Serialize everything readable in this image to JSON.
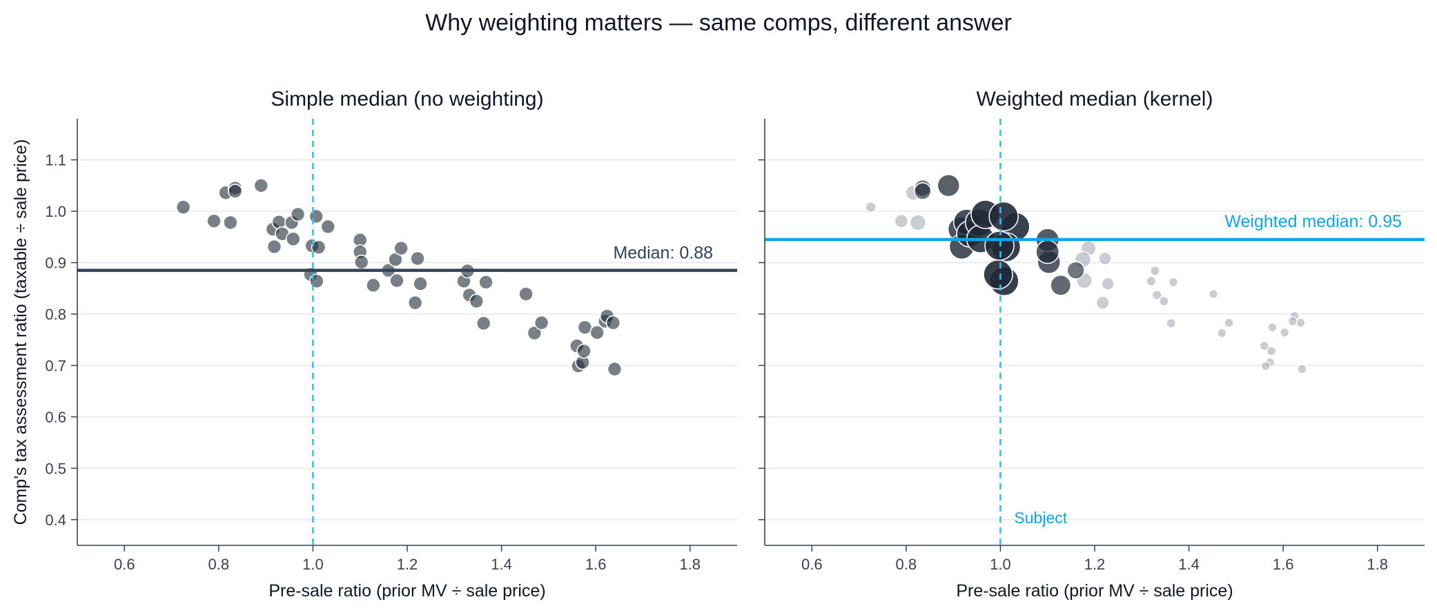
{
  "figure": {
    "title": "Why weighting matters — same comps, different answer",
    "ylabel": "Comp's tax assessment ratio  (taxable ÷ sale price)",
    "colors": {
      "point": "#1f2937",
      "point_light": "#9ca3af",
      "median_line": "#334155",
      "weighted_line": "#0ea5e9",
      "subject_line": "#38bdf8",
      "grid": "#e5e7eb",
      "axis": "#374151",
      "text": "#0f172a"
    }
  },
  "chart_data": [
    {
      "type": "scatter",
      "title": "Simple median (no weighting)",
      "xlabel": "Pre-sale ratio  (prior MV ÷ sale price)",
      "ylabel": "Comp's tax assessment ratio  (taxable ÷ sale price)",
      "xlim": [
        0.5,
        1.9
      ],
      "ylim": [
        0.35,
        1.18
      ],
      "xticks": [
        0.6,
        0.8,
        1.0,
        1.2,
        1.4,
        1.6,
        1.8
      ],
      "yticks": [
        0.4,
        0.5,
        0.6,
        0.7,
        0.8,
        0.9,
        1.0,
        1.1
      ],
      "grid": "horizontal",
      "reference_x": 1.0,
      "median": {
        "value": 0.885,
        "label": "Median: 0.88"
      },
      "points": [
        {
          "x": 0.725,
          "y": 1.008
        },
        {
          "x": 0.79,
          "y": 0.981
        },
        {
          "x": 0.815,
          "y": 1.036
        },
        {
          "x": 0.825,
          "y": 0.978
        },
        {
          "x": 0.835,
          "y": 1.045
        },
        {
          "x": 0.835,
          "y": 1.039
        },
        {
          "x": 0.89,
          "y": 1.05
        },
        {
          "x": 0.915,
          "y": 0.965
        },
        {
          "x": 0.918,
          "y": 0.931
        },
        {
          "x": 0.928,
          "y": 0.979
        },
        {
          "x": 0.935,
          "y": 0.956
        },
        {
          "x": 0.955,
          "y": 0.978
        },
        {
          "x": 0.958,
          "y": 0.946
        },
        {
          "x": 0.968,
          "y": 0.994
        },
        {
          "x": 0.995,
          "y": 0.877
        },
        {
          "x": 0.998,
          "y": 0.933
        },
        {
          "x": 1.007,
          "y": 0.99
        },
        {
          "x": 1.008,
          "y": 0.864
        },
        {
          "x": 1.012,
          "y": 0.93
        },
        {
          "x": 1.032,
          "y": 0.97
        },
        {
          "x": 1.1,
          "y": 0.944
        },
        {
          "x": 1.1,
          "y": 0.921
        },
        {
          "x": 1.103,
          "y": 0.901
        },
        {
          "x": 1.128,
          "y": 0.856
        },
        {
          "x": 1.16,
          "y": 0.885
        },
        {
          "x": 1.175,
          "y": 0.906
        },
        {
          "x": 1.178,
          "y": 0.865
        },
        {
          "x": 1.187,
          "y": 0.928
        },
        {
          "x": 1.217,
          "y": 0.822
        },
        {
          "x": 1.222,
          "y": 0.908
        },
        {
          "x": 1.228,
          "y": 0.859
        },
        {
          "x": 1.32,
          "y": 0.864
        },
        {
          "x": 1.328,
          "y": 0.884
        },
        {
          "x": 1.332,
          "y": 0.837
        },
        {
          "x": 1.347,
          "y": 0.825
        },
        {
          "x": 1.362,
          "y": 0.782
        },
        {
          "x": 1.367,
          "y": 0.862
        },
        {
          "x": 1.452,
          "y": 0.839
        },
        {
          "x": 1.47,
          "y": 0.763
        },
        {
          "x": 1.485,
          "y": 0.783
        },
        {
          "x": 1.56,
          "y": 0.738
        },
        {
          "x": 1.563,
          "y": 0.699
        },
        {
          "x": 1.572,
          "y": 0.706
        },
        {
          "x": 1.575,
          "y": 0.728
        },
        {
          "x": 1.577,
          "y": 0.774
        },
        {
          "x": 1.603,
          "y": 0.764
        },
        {
          "x": 1.62,
          "y": 0.786
        },
        {
          "x": 1.624,
          "y": 0.796
        },
        {
          "x": 1.637,
          "y": 0.783
        },
        {
          "x": 1.64,
          "y": 0.693
        }
      ]
    },
    {
      "type": "scatter",
      "title": "Weighted median (kernel)",
      "xlabel": "Pre-sale ratio  (prior MV ÷ sale price)",
      "xlim": [
        0.5,
        1.9
      ],
      "ylim": [
        0.35,
        1.18
      ],
      "xticks": [
        0.6,
        0.8,
        1.0,
        1.2,
        1.4,
        1.6,
        1.8
      ],
      "yticks": [
        0.4,
        0.5,
        0.6,
        0.7,
        0.8,
        0.9,
        1.0,
        1.1
      ],
      "grid": "horizontal",
      "reference_x": 1.0,
      "reference_label": "Subject",
      "median": {
        "value": 0.945,
        "label": "Weighted median: 0.95"
      },
      "weighting": {
        "kernel": "gaussian",
        "center": 1.0,
        "bandwidth": 0.12
      }
    }
  ]
}
